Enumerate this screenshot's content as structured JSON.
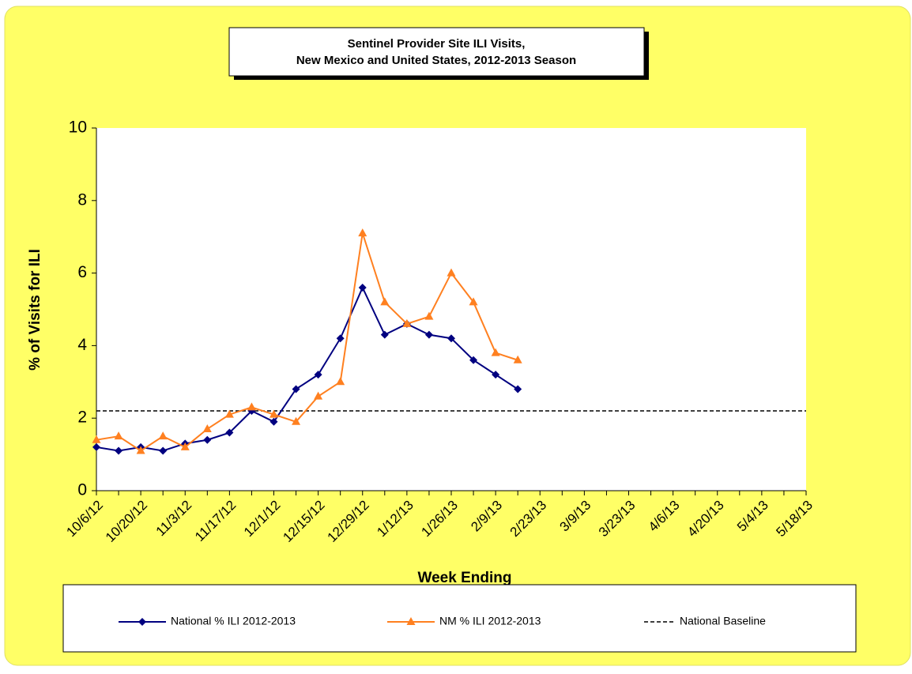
{
  "chart_data": {
    "type": "line",
    "title": "Sentinel Provider Site ILI Visits,",
    "subtitle": "New Mexico and United States,  2012-2013 Season",
    "x_label": "Week Ending",
    "y_label": "% of Visits for ILI",
    "categories": [
      "10/6/12",
      null,
      "10/20/12",
      null,
      "11/3/12",
      null,
      "11/17/12",
      null,
      "12/1/12",
      null,
      "12/15/12",
      null,
      "12/29/12",
      null,
      "1/12/13",
      null,
      "1/26/13",
      null,
      "2/9/13",
      null,
      "2/23/13",
      null,
      "3/9/13",
      null,
      "3/23/13",
      null,
      "4/6/13",
      null,
      "4/20/13",
      null,
      "5/4/13",
      null,
      "5/18/13"
    ],
    "series": [
      {
        "name": "National % ILI 2012-2013",
        "color": "#000080",
        "marker": "diamond",
        "values": [
          1.2,
          1.1,
          1.2,
          1.1,
          1.3,
          1.4,
          1.6,
          2.2,
          1.9,
          2.8,
          3.2,
          4.2,
          5.6,
          4.3,
          4.6,
          4.3,
          4.2,
          3.6,
          3.2,
          2.8,
          null,
          null,
          null,
          null,
          null,
          null,
          null,
          null,
          null,
          null,
          null,
          null,
          null
        ]
      },
      {
        "name": "NM % ILI 2012-2013",
        "color": "#ff8020",
        "marker": "triangle",
        "values": [
          1.4,
          1.5,
          1.1,
          1.5,
          1.2,
          1.7,
          2.1,
          2.3,
          2.1,
          1.9,
          2.6,
          3.0,
          7.1,
          5.2,
          4.6,
          4.8,
          6.0,
          5.2,
          3.8,
          3.6,
          null,
          null,
          null,
          null,
          null,
          null,
          null,
          null,
          null,
          null,
          null,
          null,
          null
        ]
      }
    ],
    "baseline": {
      "name": "National Baseline",
      "value": 2.2,
      "color": "#000000"
    },
    "ylim": [
      0,
      10
    ],
    "yticks": [
      0,
      2,
      4,
      6,
      8,
      10
    ]
  }
}
